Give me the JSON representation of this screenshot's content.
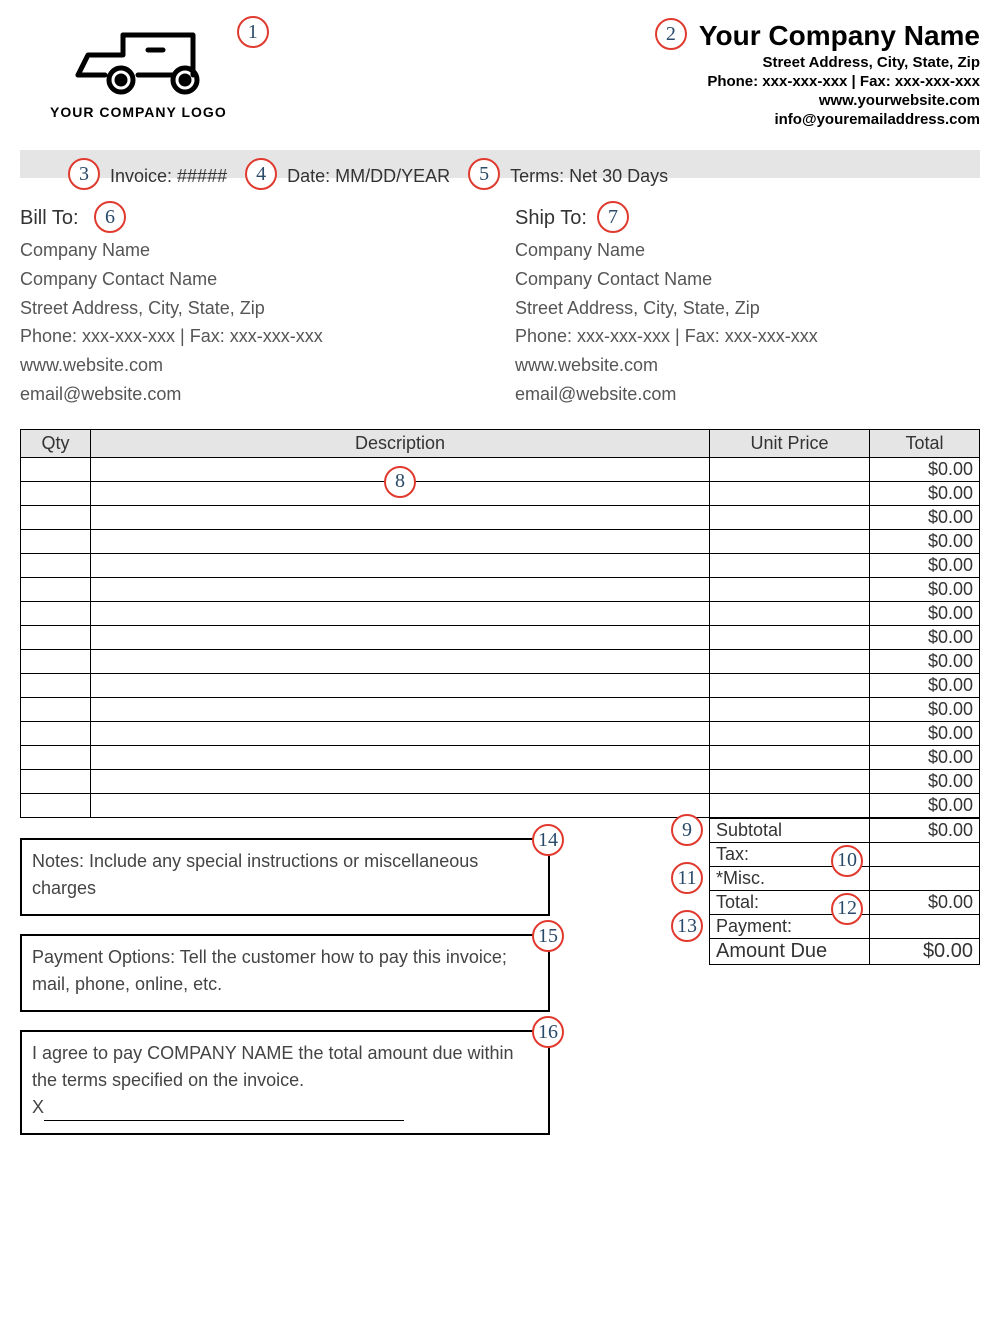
{
  "logo_caption": "YOUR COMPANY LOGO",
  "company": {
    "name": "Your Company Name",
    "address": "Street Address, City, State, Zip",
    "phone_fax": "Phone: xxx-xxx-xxx | Fax: xxx-xxx-xxx",
    "website": "www.yourwebsite.com",
    "email": "info@youremailaddress.com"
  },
  "meta": {
    "invoice": "Invoice: #####",
    "date": "Date: MM/DD/YEAR",
    "terms": "Terms: Net 30 Days"
  },
  "bill_to": {
    "title": "Bill To:",
    "name": "Company Name",
    "contact": "Company Contact Name",
    "address": "Street Address, City, State, Zip",
    "phone_fax": "Phone: xxx-xxx-xxx | Fax: xxx-xxx-xxx",
    "website": "www.website.com",
    "email": "email@website.com"
  },
  "ship_to": {
    "title": "Ship To:",
    "name": "Company Name",
    "contact": "Company Contact Name",
    "address": "Street Address, City, State, Zip",
    "phone_fax": "Phone: xxx-xxx-xxx | Fax: xxx-xxx-xxx",
    "website": "www.website.com",
    "email": "email@website.com"
  },
  "table": {
    "headers": {
      "qty": "Qty",
      "desc": "Description",
      "unit": "Unit Price",
      "total": "Total"
    },
    "row_count": 15,
    "row_total": "$0.00"
  },
  "totals": {
    "subtotal_label": "Subtotal",
    "subtotal_val": "$0.00",
    "tax_label": "Tax:",
    "tax_val": "",
    "misc_label": "*Misc.",
    "misc_val": "",
    "total_label": "Total:",
    "total_val": "$0.00",
    "payment_label": "Payment:",
    "payment_val": "",
    "due_label": "Amount Due",
    "due_val": "$0.00"
  },
  "notes": "Notes:  Include any special instructions or miscellaneous charges",
  "payment_options": "Payment Options: Tell the customer how to pay this invoice; mail, phone, online, etc.",
  "agreement": "I agree to pay COMPANY NAME the total amount due within the terms specified on the invoice.",
  "sig_prefix": "X",
  "markers": {
    "m1": "1",
    "m2": "2",
    "m3": "3",
    "m4": "4",
    "m5": "5",
    "m6": "6",
    "m7": "7",
    "m8": "8",
    "m9": "9",
    "m10": "10",
    "m11": "11",
    "m12": "12",
    "m13": "13",
    "m14": "14",
    "m15": "15",
    "m16": "16"
  },
  "colors": {
    "marker_border": "#e03a2f",
    "marker_text": "#2a4a6a",
    "header_bg": "#e5e5e5"
  }
}
